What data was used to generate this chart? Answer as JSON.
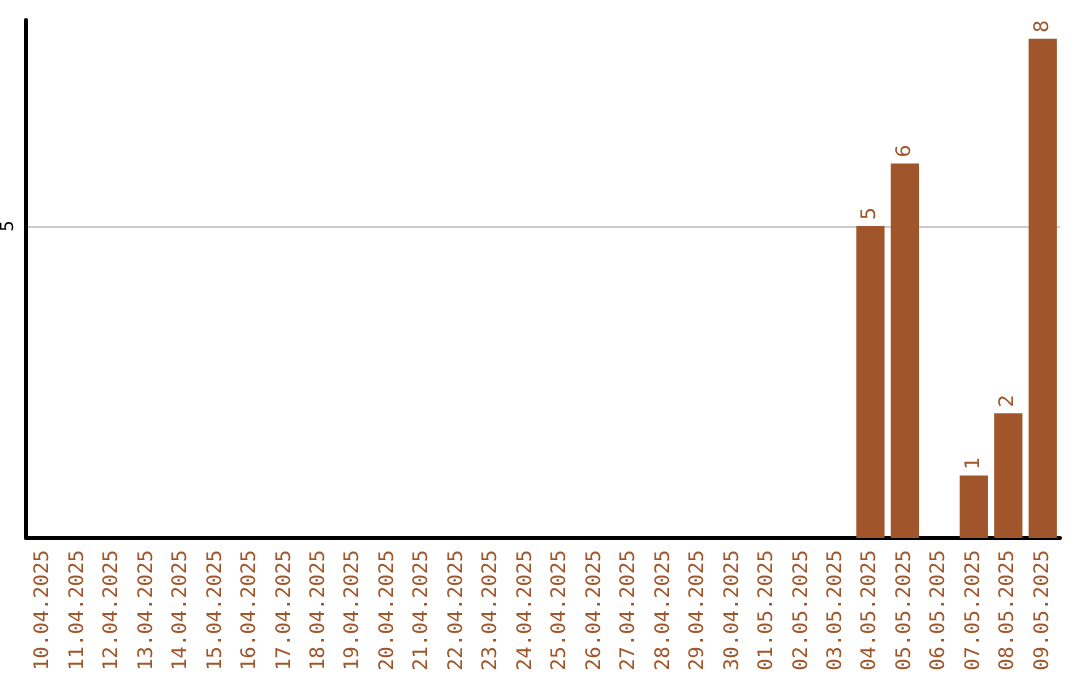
{
  "chart_data": {
    "type": "bar",
    "categories": [
      "10.04.2025",
      "11.04.2025",
      "12.04.2025",
      "13.04.2025",
      "14.04.2025",
      "15.04.2025",
      "16.04.2025",
      "17.04.2025",
      "18.04.2025",
      "19.04.2025",
      "20.04.2025",
      "21.04.2025",
      "22.04.2025",
      "23.04.2025",
      "24.04.2025",
      "25.04.2025",
      "26.04.2025",
      "27.04.2025",
      "28.04.2025",
      "29.04.2025",
      "30.04.2025",
      "01.05.2025",
      "02.05.2025",
      "03.05.2025",
      "04.05.2025",
      "05.05.2025",
      "06.05.2025",
      "07.05.2025",
      "08.05.2025",
      "09.05.2025"
    ],
    "values": [
      null,
      null,
      null,
      null,
      null,
      null,
      null,
      null,
      null,
      null,
      null,
      null,
      null,
      null,
      null,
      null,
      null,
      null,
      null,
      null,
      null,
      null,
      null,
      null,
      5,
      6,
      null,
      1,
      2,
      8
    ],
    "color": "#a0562a",
    "ylim": [
      0,
      8.3
    ],
    "yticks": [
      5
    ],
    "grid": "y",
    "data_labels": true
  }
}
